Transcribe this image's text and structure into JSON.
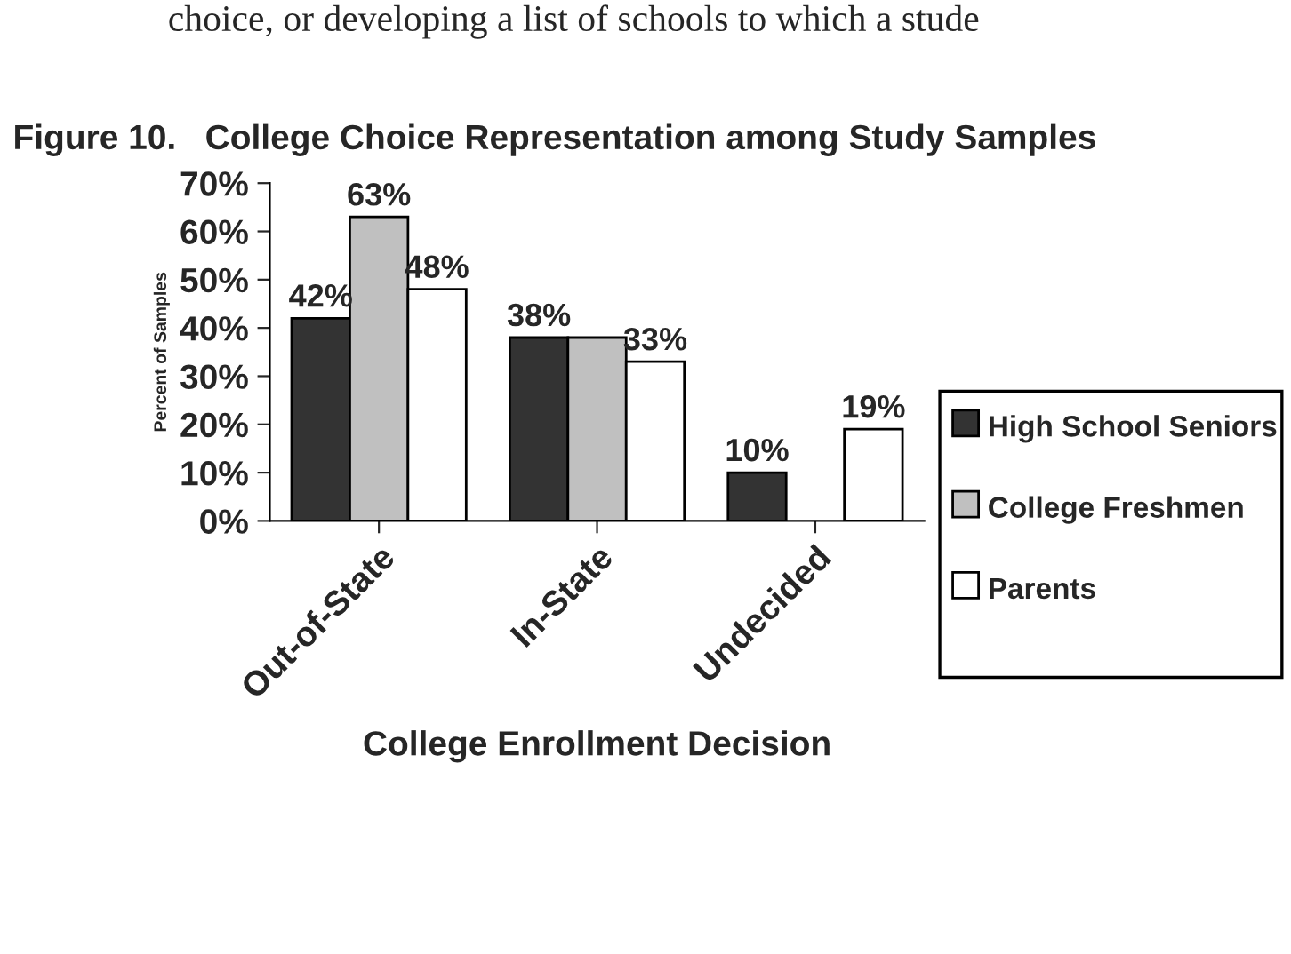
{
  "chart_data": {
    "type": "bar",
    "title": "Figure 10.   College Choice Representation among Study Samples",
    "xlabel": "College Enrollment Decision",
    "ylabel": "Percent of Samples",
    "annotations": [
      "choice, or developing a list of schools to which a stude"
    ],
    "categories": [
      "Out-of-State",
      "In-State",
      "Undecided"
    ],
    "series": [
      {
        "name": "High School Seniors",
        "color": "#333333",
        "values": [
          42,
          38,
          10
        ],
        "value_labels": [
          "42%",
          "38%",
          "10%"
        ]
      },
      {
        "name": "College Freshmen",
        "color": "#c0c0c0",
        "values": [
          63,
          38,
          null
        ],
        "value_labels": [
          "63%",
          null,
          null
        ]
      },
      {
        "name": "Parents",
        "color": "#ffffff",
        "values": [
          48,
          33,
          19
        ],
        "value_labels": [
          "48%",
          "33%",
          "19%"
        ]
      }
    ],
    "ylim": [
      0,
      70
    ],
    "yticks": [
      {
        "value": 0,
        "label": "0%"
      },
      {
        "value": 10,
        "label": "10%"
      },
      {
        "value": 20,
        "label": "20%"
      },
      {
        "value": 30,
        "label": "30%"
      },
      {
        "value": 40,
        "label": "40%"
      },
      {
        "value": 50,
        "label": "50%"
      },
      {
        "value": 60,
        "label": "60%"
      },
      {
        "value": 70,
        "label": "70%"
      }
    ],
    "grid": false,
    "legend": "right"
  }
}
